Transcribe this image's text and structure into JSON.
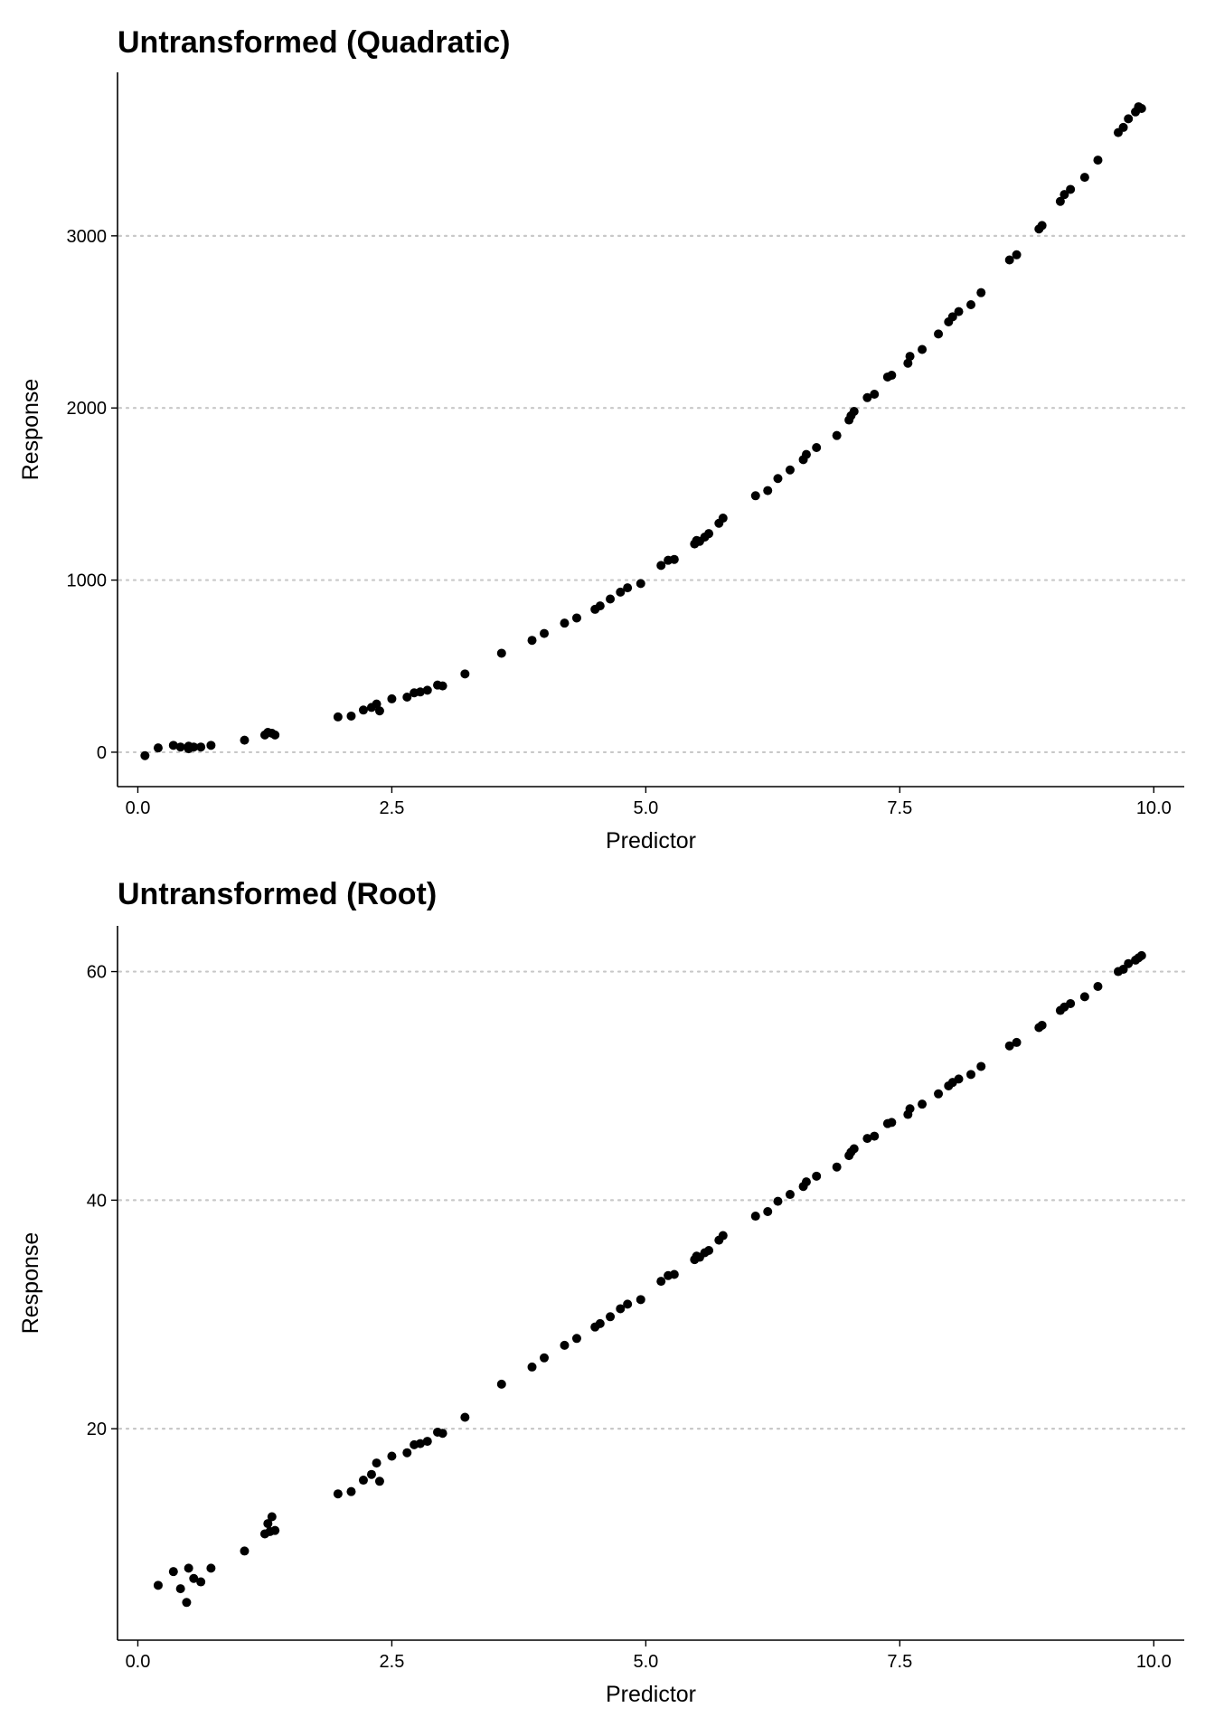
{
  "chart_data": [
    {
      "type": "scatter",
      "title": "Untransformed (Quadratic)",
      "xlabel": "Predictor",
      "ylabel": "Response",
      "xlim": [
        -0.2,
        10.3
      ],
      "ylim": [
        -200,
        3950
      ],
      "x_ticks": [
        0,
        2.5,
        5,
        7.5,
        10
      ],
      "x_tick_labels": [
        "0.0",
        "2.5",
        "5.0",
        "7.5",
        "10.0"
      ],
      "y_ticks": [
        0,
        1000,
        2000,
        3000
      ],
      "y_tick_labels": [
        "0",
        "1000",
        "2000",
        "3000"
      ],
      "grid": "horizontal dotted",
      "points": [
        [
          0.07,
          -20
        ],
        [
          0.2,
          25
        ],
        [
          0.35,
          40
        ],
        [
          0.42,
          30
        ],
        [
          0.5,
          20
        ],
        [
          0.5,
          35
        ],
        [
          0.55,
          30
        ],
        [
          0.62,
          30
        ],
        [
          0.72,
          40
        ],
        [
          1.05,
          70
        ],
        [
          1.25,
          100
        ],
        [
          1.28,
          115
        ],
        [
          1.32,
          110
        ],
        [
          1.35,
          100
        ],
        [
          1.97,
          205
        ],
        [
          2.1,
          210
        ],
        [
          2.22,
          245
        ],
        [
          2.3,
          260
        ],
        [
          2.35,
          280
        ],
        [
          2.38,
          240
        ],
        [
          2.5,
          310
        ],
        [
          2.65,
          320
        ],
        [
          2.72,
          345
        ],
        [
          2.78,
          350
        ],
        [
          2.85,
          360
        ],
        [
          2.95,
          390
        ],
        [
          3.0,
          385
        ],
        [
          3.22,
          455
        ],
        [
          3.58,
          575
        ],
        [
          3.88,
          650
        ],
        [
          4.0,
          690
        ],
        [
          4.2,
          750
        ],
        [
          4.32,
          780
        ],
        [
          4.5,
          830
        ],
        [
          4.55,
          850
        ],
        [
          4.65,
          890
        ],
        [
          4.75,
          930
        ],
        [
          4.82,
          955
        ],
        [
          4.95,
          980
        ],
        [
          5.15,
          1085
        ],
        [
          5.22,
          1115
        ],
        [
          5.28,
          1120
        ],
        [
          5.48,
          1210
        ],
        [
          5.5,
          1230
        ],
        [
          5.53,
          1225
        ],
        [
          5.58,
          1250
        ],
        [
          5.62,
          1270
        ],
        [
          5.72,
          1330
        ],
        [
          5.76,
          1360
        ],
        [
          6.08,
          1490
        ],
        [
          6.2,
          1520
        ],
        [
          6.3,
          1590
        ],
        [
          6.42,
          1640
        ],
        [
          6.55,
          1700
        ],
        [
          6.58,
          1730
        ],
        [
          6.68,
          1770
        ],
        [
          6.88,
          1840
        ],
        [
          7.0,
          1930
        ],
        [
          7.02,
          1955
        ],
        [
          7.05,
          1980
        ],
        [
          7.18,
          2060
        ],
        [
          7.25,
          2080
        ],
        [
          7.38,
          2180
        ],
        [
          7.42,
          2190
        ],
        [
          7.58,
          2260
        ],
        [
          7.6,
          2300
        ],
        [
          7.72,
          2340
        ],
        [
          7.88,
          2430
        ],
        [
          7.98,
          2500
        ],
        [
          8.02,
          2530
        ],
        [
          8.08,
          2560
        ],
        [
          8.2,
          2600
        ],
        [
          8.3,
          2670
        ],
        [
          8.58,
          2860
        ],
        [
          8.65,
          2890
        ],
        [
          8.87,
          3040
        ],
        [
          8.9,
          3060
        ],
        [
          9.08,
          3200
        ],
        [
          9.12,
          3240
        ],
        [
          9.18,
          3270
        ],
        [
          9.32,
          3340
        ],
        [
          9.45,
          3440
        ],
        [
          9.65,
          3600
        ],
        [
          9.7,
          3630
        ],
        [
          9.75,
          3680
        ],
        [
          9.82,
          3720
        ],
        [
          9.85,
          3750
        ],
        [
          9.88,
          3740
        ]
      ]
    },
    {
      "type": "scatter",
      "title": "Untransformed (Root)",
      "xlabel": "Predictor",
      "ylabel": "Response",
      "xlim": [
        -0.2,
        10.3
      ],
      "ylim": [
        1.5,
        64
      ],
      "x_ticks": [
        0,
        2.5,
        5,
        7.5,
        10
      ],
      "x_tick_labels": [
        "0.0",
        "2.5",
        "5.0",
        "7.5",
        "10.0"
      ],
      "y_ticks": [
        20,
        40,
        60
      ],
      "y_tick_labels": [
        "20",
        "40",
        "60"
      ],
      "grid": "horizontal dotted",
      "points": [
        [
          0.2,
          6.3
        ],
        [
          0.35,
          7.5
        ],
        [
          0.42,
          6.0
        ],
        [
          0.48,
          4.8
        ],
        [
          0.5,
          7.8
        ],
        [
          0.55,
          6.9
        ],
        [
          0.62,
          6.6
        ],
        [
          0.72,
          7.8
        ],
        [
          1.05,
          9.3
        ],
        [
          1.25,
          10.8
        ],
        [
          1.28,
          11.7
        ],
        [
          1.32,
          12.3
        ],
        [
          1.3,
          11.0
        ],
        [
          1.35,
          11.1
        ],
        [
          1.97,
          14.3
        ],
        [
          2.1,
          14.5
        ],
        [
          2.22,
          15.5
        ],
        [
          2.3,
          16.0
        ],
        [
          2.35,
          17.0
        ],
        [
          2.38,
          15.4
        ],
        [
          2.5,
          17.6
        ],
        [
          2.65,
          17.9
        ],
        [
          2.72,
          18.6
        ],
        [
          2.78,
          18.7
        ],
        [
          2.85,
          18.9
        ],
        [
          2.95,
          19.7
        ],
        [
          3.0,
          19.6
        ],
        [
          3.22,
          21.0
        ],
        [
          3.58,
          23.9
        ],
        [
          3.88,
          25.4
        ],
        [
          4.0,
          26.2
        ],
        [
          4.2,
          27.3
        ],
        [
          4.32,
          27.9
        ],
        [
          4.5,
          28.9
        ],
        [
          4.55,
          29.2
        ],
        [
          4.65,
          29.8
        ],
        [
          4.75,
          30.5
        ],
        [
          4.82,
          30.9
        ],
        [
          4.95,
          31.3
        ],
        [
          5.15,
          32.9
        ],
        [
          5.22,
          33.4
        ],
        [
          5.28,
          33.5
        ],
        [
          5.48,
          34.8
        ],
        [
          5.5,
          35.1
        ],
        [
          5.53,
          35.0
        ],
        [
          5.58,
          35.4
        ],
        [
          5.62,
          35.6
        ],
        [
          5.72,
          36.5
        ],
        [
          5.76,
          36.9
        ],
        [
          6.08,
          38.6
        ],
        [
          6.2,
          39.0
        ],
        [
          6.3,
          39.9
        ],
        [
          6.42,
          40.5
        ],
        [
          6.55,
          41.2
        ],
        [
          6.58,
          41.6
        ],
        [
          6.68,
          42.1
        ],
        [
          6.88,
          42.9
        ],
        [
          7.0,
          43.9
        ],
        [
          7.02,
          44.2
        ],
        [
          7.05,
          44.5
        ],
        [
          7.18,
          45.4
        ],
        [
          7.25,
          45.6
        ],
        [
          7.38,
          46.7
        ],
        [
          7.42,
          46.8
        ],
        [
          7.58,
          47.5
        ],
        [
          7.6,
          48.0
        ],
        [
          7.72,
          48.4
        ],
        [
          7.88,
          49.3
        ],
        [
          7.98,
          50.0
        ],
        [
          8.02,
          50.3
        ],
        [
          8.08,
          50.6
        ],
        [
          8.2,
          51.0
        ],
        [
          8.3,
          51.7
        ],
        [
          8.58,
          53.5
        ],
        [
          8.65,
          53.8
        ],
        [
          8.87,
          55.1
        ],
        [
          8.9,
          55.3
        ],
        [
          9.08,
          56.6
        ],
        [
          9.12,
          56.9
        ],
        [
          9.18,
          57.2
        ],
        [
          9.32,
          57.8
        ],
        [
          9.45,
          58.7
        ],
        [
          9.65,
          60.0
        ],
        [
          9.7,
          60.2
        ],
        [
          9.75,
          60.7
        ],
        [
          9.82,
          61.0
        ],
        [
          9.85,
          61.2
        ],
        [
          9.88,
          61.4
        ]
      ]
    }
  ]
}
